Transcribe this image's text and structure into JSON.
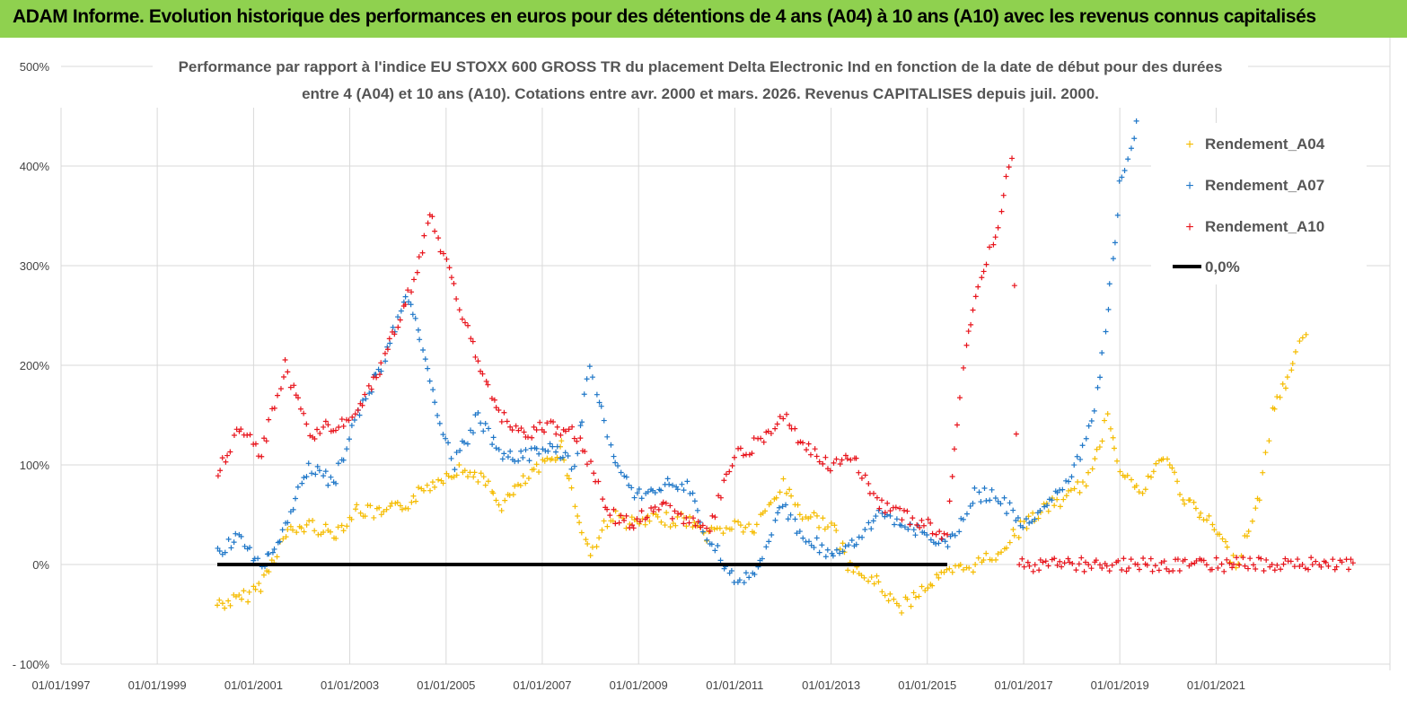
{
  "header": {
    "title": "ADAM Informe. Evolution historique des performances en euros pour des détentions de 4 ans (A04) à 10 ans (A10) avec les revenus connus capitalisés"
  },
  "colors": {
    "header_bg": "#8fd14f",
    "A04": "#f5bc00",
    "A07": "#1f77c8",
    "A10": "#e8141c",
    "zero": "#000000",
    "grid": "#d9d9d9"
  },
  "chart_data": {
    "type": "scatter",
    "title_lines": [
      "Performance par rapport à l'indice EU STOXX 600 GROSS TR  du placement Delta Electronic Ind  en fonction de la date de début pour des durées",
      "entre 4 (A04) et 10 ans (A10). Cotations entre avr. 2000 et mars. 2026. Revenus CAPITALISES depuis juil. 2000."
    ],
    "x_ticks": [
      "01/01/1997",
      "01/01/1999",
      "01/01/2001",
      "01/01/2003",
      "01/01/2005",
      "01/01/2007",
      "01/01/2009",
      "01/01/2011",
      "01/01/2013",
      "01/01/2015",
      "01/01/2017",
      "01/01/2019",
      "01/01/2021"
    ],
    "y_ticks": [
      "500%",
      "400%",
      "300%",
      "200%",
      "100%",
      "0%",
      "- 100%"
    ],
    "xlim": [
      "1997-01-01",
      "2023-12-31"
    ],
    "ylim": [
      -100,
      500
    ],
    "legend_position": "top-right",
    "series": [
      {
        "name": "Rendement_A04",
        "marker": "+",
        "points": [
          [
            "2000-04",
            -40
          ],
          [
            "2000-10",
            -35
          ],
          [
            "2001-03",
            -20
          ],
          [
            "2001-09",
            30
          ],
          [
            "2002-03",
            40
          ],
          [
            "2002-09",
            30
          ],
          [
            "2003-03",
            55
          ],
          [
            "2003-09",
            50
          ],
          [
            "2004-03",
            60
          ],
          [
            "2004-09",
            80
          ],
          [
            "2005-03",
            95
          ],
          [
            "2005-09",
            90
          ],
          [
            "2006-03",
            60
          ],
          [
            "2006-09",
            85
          ],
          [
            "2007-03",
            105
          ],
          [
            "2007-06",
            120
          ],
          [
            "2007-09",
            60
          ],
          [
            "2008-01",
            10
          ],
          [
            "2008-06",
            50
          ],
          [
            "2008-12",
            40
          ],
          [
            "2009-06",
            45
          ],
          [
            "2010-01",
            45
          ],
          [
            "2010-06",
            30
          ],
          [
            "2011-01",
            40
          ],
          [
            "2011-06",
            35
          ],
          [
            "2012-01",
            80
          ],
          [
            "2012-06",
            50
          ],
          [
            "2013-01",
            40
          ],
          [
            "2013-06",
            -5
          ],
          [
            "2014-01",
            -20
          ],
          [
            "2014-06",
            -45
          ],
          [
            "2015-01",
            -20
          ],
          [
            "2015-06",
            -10
          ],
          [
            "2016-01",
            0
          ],
          [
            "2016-06",
            10
          ],
          [
            "2017-01",
            40
          ],
          [
            "2017-06",
            55
          ],
          [
            "2018-01",
            70
          ],
          [
            "2018-06",
            90
          ],
          [
            "2018-10",
            150
          ],
          [
            "2019-01",
            100
          ],
          [
            "2019-06",
            70
          ],
          [
            "2019-12",
            110
          ],
          [
            "2020-06",
            60
          ],
          [
            "2020-12",
            40
          ],
          [
            "2021-06",
            0
          ],
          [
            "2021-12",
            70
          ],
          [
            "2022-03",
            150
          ],
          [
            "2022-09",
            210
          ],
          [
            "2022-12",
            245
          ]
        ]
      },
      {
        "name": "Rendement_A07",
        "marker": "+",
        "points": [
          [
            "2000-04",
            10
          ],
          [
            "2000-10",
            30
          ],
          [
            "2001-03",
            -5
          ],
          [
            "2001-09",
            40
          ],
          [
            "2002-03",
            100
          ],
          [
            "2002-09",
            80
          ],
          [
            "2003-03",
            150
          ],
          [
            "2003-09",
            200
          ],
          [
            "2004-03",
            270
          ],
          [
            "2004-06",
            240
          ],
          [
            "2004-09",
            180
          ],
          [
            "2005-03",
            100
          ],
          [
            "2005-09",
            150
          ],
          [
            "2006-03",
            110
          ],
          [
            "2006-09",
            110
          ],
          [
            "2007-03",
            120
          ],
          [
            "2007-09",
            100
          ],
          [
            "2008-01",
            200
          ],
          [
            "2008-06",
            120
          ],
          [
            "2008-12",
            70
          ],
          [
            "2009-06",
            80
          ],
          [
            "2010-01",
            80
          ],
          [
            "2010-06",
            30
          ],
          [
            "2011-01",
            -15
          ],
          [
            "2011-06",
            -10
          ],
          [
            "2012-01",
            60
          ],
          [
            "2012-06",
            30
          ],
          [
            "2013-01",
            10
          ],
          [
            "2013-06",
            20
          ],
          [
            "2014-01",
            50
          ],
          [
            "2014-06",
            40
          ],
          [
            "2015-01",
            30
          ],
          [
            "2015-06",
            20
          ],
          [
            "2016-01",
            70
          ],
          [
            "2016-06",
            70
          ],
          [
            "2017-01",
            40
          ],
          [
            "2017-06",
            60
          ],
          [
            "2018-01",
            90
          ],
          [
            "2018-06",
            140
          ],
          [
            "2018-10",
            250
          ],
          [
            "2019-01",
            380
          ],
          [
            "2019-06",
            450
          ]
        ]
      },
      {
        "name": "Rendement_A10",
        "marker": "+",
        "points": [
          [
            "2000-04",
            90
          ],
          [
            "2000-10",
            140
          ],
          [
            "2001-03",
            110
          ],
          [
            "2001-09",
            200
          ],
          [
            "2002-03",
            130
          ],
          [
            "2002-09",
            140
          ],
          [
            "2003-03",
            150
          ],
          [
            "2003-09",
            200
          ],
          [
            "2004-03",
            260
          ],
          [
            "2004-09",
            350
          ],
          [
            "2005-03",
            280
          ],
          [
            "2005-09",
            200
          ],
          [
            "2006-03",
            150
          ],
          [
            "2006-09",
            130
          ],
          [
            "2007-03",
            140
          ],
          [
            "2007-09",
            130
          ],
          [
            "2008-01",
            100
          ],
          [
            "2008-06",
            50
          ],
          [
            "2008-12",
            40
          ],
          [
            "2009-06",
            60
          ],
          [
            "2010-01",
            45
          ],
          [
            "2010-06",
            30
          ],
          [
            "2011-01",
            110
          ],
          [
            "2011-06",
            120
          ],
          [
            "2012-01",
            150
          ],
          [
            "2012-06",
            120
          ],
          [
            "2013-01",
            100
          ],
          [
            "2013-06",
            110
          ],
          [
            "2014-01",
            60
          ],
          [
            "2014-06",
            50
          ],
          [
            "2015-01",
            40
          ],
          [
            "2015-06",
            30
          ],
          [
            "2015-10",
            200
          ],
          [
            "2016-01",
            270
          ],
          [
            "2016-06",
            330
          ],
          [
            "2016-10",
            410
          ],
          [
            "2016-12",
            0
          ],
          [
            "2019-06",
            0
          ],
          [
            "2023-12",
            0
          ]
        ]
      },
      {
        "name": "0,0%",
        "line": true,
        "points": [
          [
            "2000-04",
            0
          ],
          [
            "2015-06",
            0
          ]
        ]
      }
    ]
  }
}
